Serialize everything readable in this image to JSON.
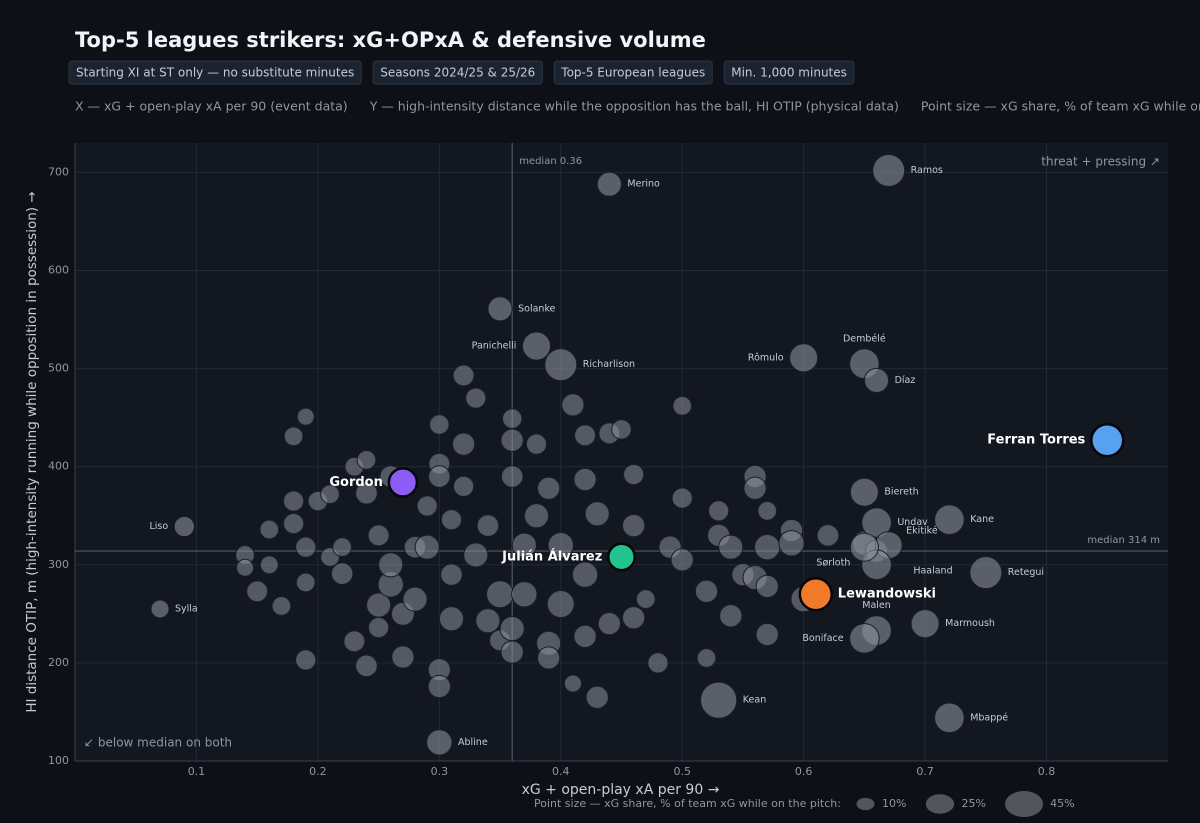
{
  "chart_data": {
    "type": "scatter",
    "title": "Top-5 leagues strikers: xG+OPxA & defensive volume",
    "chips": [
      "Starting XI at ST only — no substitute minutes",
      "Seasons 2024/25 & 25/26",
      "Top-5 European leagues",
      "Min. 1,000 minutes"
    ],
    "notes": [
      "X — xG + open-play xA per 90 (event data)",
      "Y — high-intensity distance while the opposition has the ball, HI OTIP (physical data)",
      "Point size — xG share, % of team xG while on the pitch"
    ],
    "xlabel": "xG + open-play xA per 90  →",
    "ylabel": "HI distance OTIP, m (high-intensity running while opposition in possession)  →",
    "xlim": [
      0,
      0.9
    ],
    "ylim": [
      100,
      730
    ],
    "xticks": [
      0.1,
      0.2,
      0.3,
      0.4,
      0.5,
      0.6,
      0.7,
      0.8
    ],
    "yticks": [
      100,
      200,
      300,
      400,
      500,
      600,
      700
    ],
    "grid": true,
    "x_median": {
      "value": 0.36,
      "label": "median 0.36"
    },
    "y_median": {
      "value": 314,
      "label": "median 314 m"
    },
    "corner_top_right": "threat + pressing ↗",
    "corner_bottom_left": "↙ below median on both",
    "size_legend_title": "Point size — xG share, % of team xG while on the pitch:",
    "size_legend": [
      {
        "value": 10,
        "label": "10%"
      },
      {
        "value": 25,
        "label": "25%"
      },
      {
        "value": 45,
        "label": "45%"
      }
    ],
    "series": [
      {
        "color": "#8b909a",
        "x": [
          0.19,
          0.18,
          0.14,
          0.14,
          0.15,
          0.16,
          0.16,
          0.17,
          0.18,
          0.18,
          0.19,
          0.19,
          0.19,
          0.2,
          0.21,
          0.21,
          0.22,
          0.22,
          0.23,
          0.23,
          0.24,
          0.24,
          0.24,
          0.25,
          0.25,
          0.25,
          0.26,
          0.26,
          0.26,
          0.27,
          0.27,
          0.28,
          0.28,
          0.29,
          0.29,
          0.3,
          0.3,
          0.3,
          0.3,
          0.3,
          0.31,
          0.31,
          0.31,
          0.32,
          0.32,
          0.32,
          0.33,
          0.33,
          0.34,
          0.34,
          0.35,
          0.35,
          0.36,
          0.36,
          0.36,
          0.36,
          0.36,
          0.37,
          0.37,
          0.38,
          0.38,
          0.39,
          0.39,
          0.39,
          0.4,
          0.4,
          0.41,
          0.41,
          0.42,
          0.42,
          0.42,
          0.42,
          0.43,
          0.43,
          0.44,
          0.44,
          0.45,
          0.45,
          0.46,
          0.46,
          0.46,
          0.47,
          0.48,
          0.49,
          0.5,
          0.5,
          0.5,
          0.52,
          0.52,
          0.53,
          0.53,
          0.54,
          0.54,
          0.55,
          0.56,
          0.56,
          0.56,
          0.57,
          0.57,
          0.57,
          0.57,
          0.59,
          0.59,
          0.6,
          0.62,
          0.65,
          0.66
        ],
        "values": [
          451,
          431,
          310,
          297,
          273,
          300,
          336,
          258,
          365,
          342,
          318,
          282,
          203,
          365,
          372,
          308,
          291,
          318,
          222,
          400,
          373,
          407,
          197,
          330,
          259,
          236,
          390,
          280,
          300,
          250,
          206,
          318,
          265,
          360,
          318,
          193,
          176,
          443,
          403,
          390,
          245,
          346,
          290,
          380,
          493,
          423,
          470,
          310,
          340,
          243,
          223,
          270,
          449,
          427,
          390,
          211,
          235,
          320,
          270,
          350,
          423,
          220,
          378,
          205,
          260,
          320,
          463,
          179,
          387,
          432,
          227,
          290,
          165,
          352,
          434,
          240,
          438,
          310,
          392,
          340,
          246,
          265,
          200,
          318,
          462,
          368,
          305,
          205,
          273,
          355,
          330,
          318,
          248,
          290,
          390,
          378,
          287,
          318,
          355,
          278,
          229,
          335,
          322,
          265,
          330,
          322,
          314
        ],
        "sizes": [
          10,
          12,
          12,
          10,
          15,
          11,
          12,
          12,
          14,
          14,
          14,
          12,
          14,
          13,
          12,
          12,
          16,
          12,
          15,
          12,
          16,
          12,
          16,
          15,
          20,
          14,
          16,
          22,
          20,
          18,
          17,
          16,
          20,
          14,
          20,
          17,
          17,
          13,
          15,
          16,
          20,
          14,
          16,
          14,
          15,
          17,
          14,
          20,
          16,
          20,
          15,
          25,
          13,
          17,
          16,
          17,
          20,
          20,
          22,
          20,
          14,
          20,
          17,
          17,
          25,
          22,
          17,
          10,
          17,
          15,
          17,
          22,
          17,
          20,
          15,
          17,
          13,
          22,
          14,
          17,
          17,
          12,
          14,
          17,
          12,
          14,
          17,
          12,
          17,
          14,
          17,
          20,
          17,
          17,
          17,
          17,
          20,
          22,
          12,
          17,
          17,
          17,
          22,
          22,
          16,
          20,
          17
        ]
      }
    ],
    "labeled": [
      {
        "name": "Ramos",
        "x": 0.67,
        "y": 702,
        "size": 35
      },
      {
        "name": "Merino",
        "x": 0.44,
        "y": 688,
        "size": 20
      },
      {
        "name": "Solanke",
        "x": 0.35,
        "y": 561,
        "size": 20
      },
      {
        "name": "Panichelli",
        "x": 0.38,
        "y": 523,
        "size": 27
      },
      {
        "name": "Richarlison",
        "x": 0.4,
        "y": 504,
        "size": 35
      },
      {
        "name": "Rômulo",
        "x": 0.6,
        "y": 511,
        "size": 27
      },
      {
        "name": "Dembélé",
        "x": 0.65,
        "y": 505,
        "size": 30
      },
      {
        "name": "Díaz",
        "x": 0.66,
        "y": 488,
        "size": 20
      },
      {
        "name": "Biereth",
        "x": 0.65,
        "y": 374,
        "size": 27
      },
      {
        "name": "Kane",
        "x": 0.72,
        "y": 346,
        "size": 30
      },
      {
        "name": "Undav",
        "x": 0.66,
        "y": 343,
        "size": 30
      },
      {
        "name": "Ekitiké",
        "x": 0.67,
        "y": 320,
        "size": 25
      },
      {
        "name": "Haaland",
        "x": 0.66,
        "y": 300,
        "size": 30
      },
      {
        "name": "Sørloth",
        "x": 0.65,
        "y": 318,
        "size": 27
      },
      {
        "name": "Malen",
        "x": 0.66,
        "y": 233,
        "size": 30
      },
      {
        "name": "Boniface",
        "x": 0.65,
        "y": 225,
        "size": 30
      },
      {
        "name": "Marmoush",
        "x": 0.7,
        "y": 240,
        "size": 27
      },
      {
        "name": "Retegui",
        "x": 0.75,
        "y": 292,
        "size": 35
      },
      {
        "name": "Mbappé",
        "x": 0.72,
        "y": 144,
        "size": 30
      },
      {
        "name": "Kean",
        "x": 0.53,
        "y": 162,
        "size": 45
      },
      {
        "name": "Abline",
        "x": 0.3,
        "y": 119,
        "size": 22
      },
      {
        "name": "Liso",
        "x": 0.09,
        "y": 339,
        "size": 14
      },
      {
        "name": "Sylla",
        "x": 0.07,
        "y": 255,
        "size": 11
      }
    ],
    "highlights": [
      {
        "name": "Ferran Torres",
        "color": "#58a0f0",
        "x": 0.85,
        "y": 427,
        "size": 35
      },
      {
        "name": "Gordon",
        "color": "#8b5cf6",
        "x": 0.27,
        "y": 384,
        "size": 27
      },
      {
        "name": "Julián Álvarez",
        "color": "#22c38e",
        "x": 0.45,
        "y": 308,
        "size": 24
      },
      {
        "name": "Lewandowski",
        "color": "#f07a2a",
        "x": 0.61,
        "y": 270,
        "size": 35
      }
    ]
  }
}
